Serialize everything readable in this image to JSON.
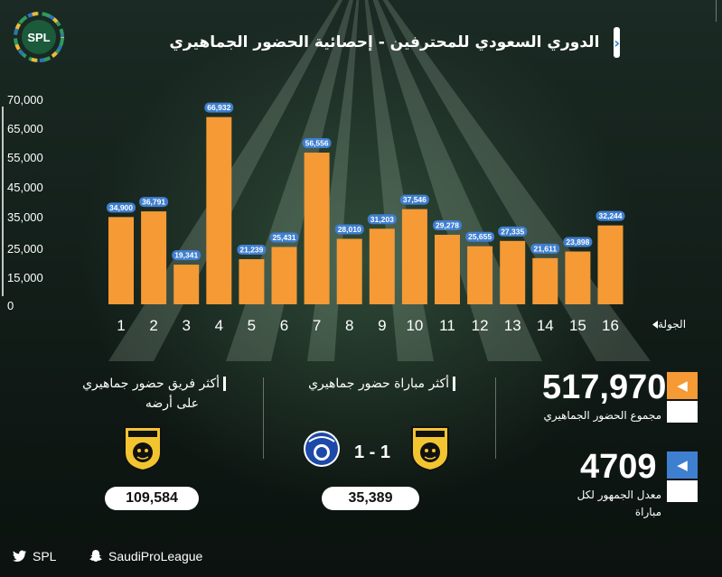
{
  "header": {
    "logo_text": "SPL",
    "title": "الدوري السعودي للمحترفين - إحصائية الحضور الجماهيري",
    "chevron": "›"
  },
  "chart_data": {
    "type": "bar",
    "categories": [
      "1",
      "2",
      "3",
      "4",
      "5",
      "6",
      "7",
      "8",
      "9",
      "10",
      "11",
      "12",
      "13",
      "14",
      "15",
      "16"
    ],
    "values": [
      34900,
      36791,
      19341,
      66932,
      21239,
      25431,
      56556,
      28010,
      31203,
      37546,
      29278,
      25655,
      27335,
      21611,
      23898,
      32244
    ],
    "value_labels": [
      "34,900",
      "36,791",
      "19,341",
      "66,932",
      "21,239",
      "25,431",
      "56,556",
      "28,010",
      "31,203",
      "37,546",
      "29,278",
      "25,655",
      "27,335",
      "21,611",
      "23,898",
      "32,244"
    ],
    "y_ticks": [
      0,
      15000,
      25000,
      35000,
      45000,
      55000,
      65000,
      70000
    ],
    "y_tick_labels": [
      "0",
      "15,000",
      "25,000",
      "35,000",
      "45,000",
      "55,000",
      "65,000",
      "70,000"
    ],
    "ylim": [
      0,
      70000
    ],
    "xlabel": "الجولة",
    "bar_color": "#f59a35",
    "label_color": "#3f7fd0"
  },
  "stats": {
    "total": {
      "value": "517,970",
      "caption": "مجموع الحضور الجماهيري",
      "arrow": "◀",
      "color": "#f59a35"
    },
    "average": {
      "value": "4709",
      "caption_line1": "معدل الجمهور لكل",
      "caption_line2": "مباراة",
      "arrow": "◀",
      "color": "#3f7fd0"
    }
  },
  "top_match": {
    "title": "أكثر مباراة حضور جماهيري",
    "score": "1 - 1",
    "attendance": "35,389",
    "home_badge": "ITTIHAD F.C",
    "away_badge": "ALHILAL S. FC"
  },
  "top_team": {
    "title_line1": "أكثر فريق حضور جماهيري",
    "title_line2": "على أرضه",
    "attendance": "109,584",
    "badge": "ITTIHAD F.C"
  },
  "footer": {
    "twitter_label": "SPL",
    "snapchat_label": "SaudiProLeague"
  }
}
